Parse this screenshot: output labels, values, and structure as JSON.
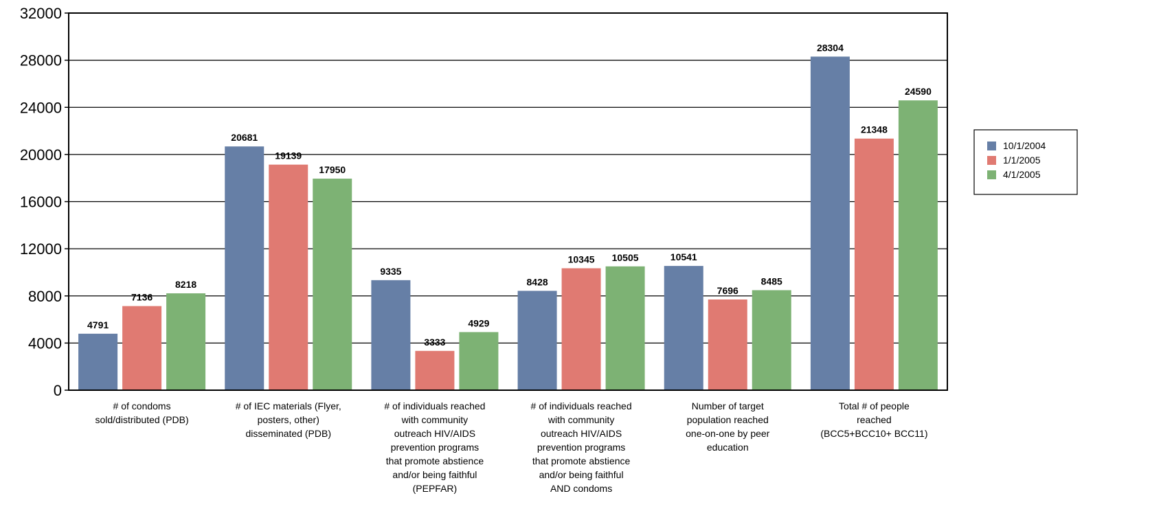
{
  "chart_data": {
    "type": "bar",
    "title": "",
    "xlabel": "",
    "ylabel": "",
    "ylim": [
      0,
      32000
    ],
    "yticks": [
      0,
      4000,
      8000,
      12000,
      16000,
      20000,
      24000,
      28000,
      32000
    ],
    "grid": true,
    "legend_position": "right",
    "categories": [
      [
        "# of condoms",
        "sold/distributed (PDB)"
      ],
      [
        "# of IEC materials (Flyer,",
        "posters, other)",
        "disseminated (PDB)"
      ],
      [
        "# of individuals reached",
        "with community",
        "outreach HIV/AIDS",
        "prevention programs",
        "that promote abstience",
        "and/or being faithful",
        "(PEPFAR)"
      ],
      [
        "# of individuals reached",
        "with community",
        "outreach HIV/AIDS",
        "prevention programs",
        "that promote abstience",
        "and/or being faithful",
        "AND condoms"
      ],
      [
        "Number of target",
        "population reached",
        "one-on-one by peer",
        "education"
      ],
      [
        "Total # of people",
        "reached",
        "(BCC5+BCC10+ BCC11)"
      ]
    ],
    "series": [
      {
        "name": "10/1/2004",
        "color": "#667fa6",
        "values": [
          4791,
          20681,
          9335,
          8428,
          10541,
          28304
        ]
      },
      {
        "name": "1/1/2005",
        "color": "#e07a72",
        "values": [
          7136,
          19139,
          3333,
          10345,
          7696,
          21348
        ]
      },
      {
        "name": "4/1/2005",
        "color": "#7db274",
        "values": [
          8218,
          17950,
          4929,
          10505,
          8485,
          24590
        ]
      }
    ]
  }
}
